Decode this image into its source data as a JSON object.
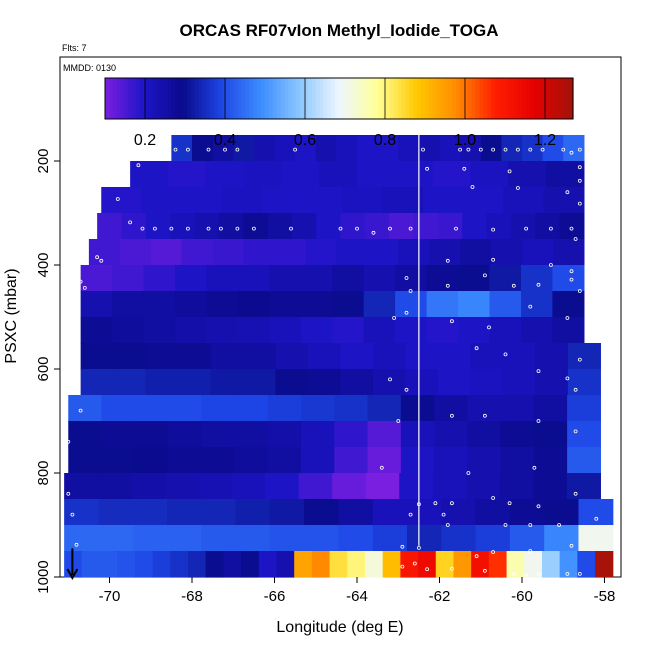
{
  "chart_data": {
    "type": "heatmap",
    "title": "ORCAS RF07vIon Methyl_Iodide_TOGA",
    "flights_label": "Flts: 7",
    "date_label": "MMDD: 0130",
    "xlabel": "Longitude (deg E)",
    "ylabel": "PSXC (mbar)",
    "xlim": [
      -71.2,
      -57.6
    ],
    "ylim": [
      1000,
      0
    ],
    "x_ticks": [
      -70,
      -68,
      -66,
      -64,
      -62,
      -60,
      -58
    ],
    "y_ticks": [
      200,
      400,
      600,
      800,
      1000
    ],
    "colorbar": {
      "range": [
        0.1,
        1.27
      ],
      "ticks": [
        0.2,
        0.4,
        0.6,
        0.8,
        1.0,
        1.2
      ],
      "tick_labels": [
        "0.2",
        "0.4",
        "0.6",
        "0.8",
        "1.0",
        "1.2"
      ],
      "colors": [
        "#7a1ee0",
        "#1e14c8",
        "#0a0a8c",
        "#1e46e6",
        "#3c8cff",
        "#8cc8ff",
        "#eef6ff",
        "#ffff96",
        "#ffc800",
        "#ff8c00",
        "#ff1e00",
        "#e60000",
        "#a0140a"
      ]
    },
    "vertical_line_x": -62.5,
    "arrow": {
      "x": -70.9,
      "y": 1000
    },
    "rows": [
      {
        "p": 175,
        "x0": -68.5,
        "x1": -58.5,
        "vals": [
          0.36,
          0.3,
          0.26,
          0.32,
          0.24,
          0.22,
          0.2,
          0.24,
          0.22,
          0.2,
          0.2,
          0.22,
          0.24,
          0.22,
          0.24,
          0.3,
          0.34,
          0.36,
          0.4,
          0.44
        ]
      },
      {
        "p": 225,
        "x0": -69.5,
        "x1": -58.5,
        "vals": [
          0.2,
          0.19,
          0.2,
          0.21,
          0.2,
          0.22,
          0.2,
          0.2,
          0.19,
          0.21,
          0.24,
          0.26
        ]
      },
      {
        "p": 275,
        "x0": -70.2,
        "x1": -58.5,
        "vals": [
          0.19,
          0.2,
          0.2,
          0.21,
          0.2,
          0.2,
          0.21,
          0.22,
          0.2,
          0.2,
          0.22,
          0.24
        ]
      },
      {
        "p": 325,
        "x0": -70.3,
        "x1": -58.5,
        "vals": [
          0.16,
          0.18,
          0.2,
          0.22,
          0.24,
          0.26,
          0.28,
          0.26,
          0.24,
          0.2,
          0.18,
          0.17,
          0.15,
          0.16,
          0.17,
          0.2,
          0.22,
          0.24,
          0.26,
          0.28
        ]
      },
      {
        "p": 375,
        "x0": -70.5,
        "x1": -58.5,
        "vals": [
          0.16,
          0.15,
          0.14,
          0.16,
          0.17,
          0.18,
          0.18,
          0.19,
          0.2,
          0.2,
          0.22,
          0.24,
          0.26,
          0.24,
          0.22,
          0.24
        ]
      },
      {
        "p": 425,
        "x0": -70.7,
        "x1": -58.5,
        "vals": [
          0.15,
          0.16,
          0.18,
          0.2,
          0.22,
          0.22,
          0.24,
          0.24,
          0.26,
          0.24,
          0.26,
          0.28,
          0.3,
          0.32,
          0.36,
          0.4
        ]
      },
      {
        "p": 475,
        "x0": -70.7,
        "x1": -58.5,
        "vals": [
          0.24,
          0.26,
          0.26,
          0.27,
          0.28,
          0.29,
          0.28,
          0.28,
          0.3,
          0.34,
          0.4,
          0.46,
          0.48,
          0.42,
          0.36,
          0.3
        ]
      },
      {
        "p": 525,
        "x0": -70.7,
        "x1": -58.5,
        "vals": [
          0.28,
          0.27,
          0.26,
          0.25,
          0.24,
          0.23,
          0.22,
          0.2,
          0.19,
          0.22,
          0.2,
          0.19,
          0.2,
          0.22,
          0.24,
          0.26
        ]
      },
      {
        "p": 575,
        "x0": -70.7,
        "x1": -58.1,
        "vals": [
          0.3,
          0.3,
          0.28,
          0.28,
          0.26,
          0.26,
          0.24,
          0.22,
          0.2,
          0.22,
          0.2,
          0.2,
          0.22,
          0.22,
          0.24,
          0.34
        ]
      },
      {
        "p": 625,
        "x0": -70.7,
        "x1": -58.1,
        "vals": [
          0.34,
          0.34,
          0.33,
          0.33,
          0.32,
          0.32,
          0.3,
          0.28,
          0.26,
          0.24,
          0.22,
          0.2,
          0.21,
          0.22,
          0.24,
          0.36
        ]
      },
      {
        "p": 675,
        "x0": -71.0,
        "x1": -58.1,
        "vals": [
          0.42,
          0.4,
          0.4,
          0.4,
          0.39,
          0.39,
          0.38,
          0.37,
          0.36,
          0.34,
          0.3,
          0.26,
          0.24,
          0.24,
          0.26,
          0.38
        ]
      },
      {
        "p": 725,
        "x0": -71.0,
        "x1": -58.1,
        "vals": [
          0.3,
          0.28,
          0.28,
          0.27,
          0.26,
          0.26,
          0.25,
          0.22,
          0.18,
          0.14,
          0.22,
          0.24,
          0.26,
          0.28,
          0.3,
          0.4
        ]
      },
      {
        "p": 775,
        "x0": -71.0,
        "x1": -58.1,
        "vals": [
          0.3,
          0.3,
          0.29,
          0.28,
          0.28,
          0.27,
          0.26,
          0.22,
          0.16,
          0.12,
          0.2,
          0.22,
          0.24,
          0.26,
          0.28,
          0.42
        ]
      },
      {
        "p": 825,
        "x0": -71.1,
        "x1": -58.1,
        "vals": [
          0.26,
          0.26,
          0.25,
          0.24,
          0.23,
          0.22,
          0.2,
          0.16,
          0.12,
          0.1,
          0.2,
          0.22,
          0.24,
          0.26,
          0.28,
          0.32
        ]
      },
      {
        "p": 875,
        "x0": -71.1,
        "x1": -57.8,
        "vals": [
          0.36,
          0.35,
          0.35,
          0.34,
          0.34,
          0.33,
          0.32,
          0.3,
          0.26,
          0.22,
          0.22,
          0.24,
          0.26,
          0.28,
          0.3,
          0.4
        ]
      },
      {
        "p": 925,
        "x0": -71.1,
        "x1": -57.8,
        "vals": [
          0.44,
          0.44,
          0.43,
          0.43,
          0.42,
          0.42,
          0.41,
          0.41,
          0.4,
          0.38,
          0.34,
          0.36,
          0.38,
          0.42,
          0.48,
          0.7
        ]
      },
      {
        "p": 975,
        "x0": -71.1,
        "x1": -57.8,
        "vals": [
          0.4,
          0.42,
          0.42,
          0.41,
          0.4,
          0.38,
          0.36,
          0.34,
          0.3,
          0.26,
          0.3,
          0.2,
          0.24,
          0.94,
          0.98,
          0.84,
          0.8,
          0.72,
          0.9,
          1.1,
          1.14,
          0.86,
          0.96,
          1.12,
          1.06,
          0.76,
          0.7,
          0.6,
          0.5,
          0.4,
          1.26
        ]
      }
    ],
    "points": [
      [
        -68.4,
        178
      ],
      [
        -68.1,
        178
      ],
      [
        -67.6,
        178
      ],
      [
        -67.2,
        178
      ],
      [
        -66.9,
        178
      ],
      [
        -65.5,
        178
      ],
      [
        -62.4,
        178
      ],
      [
        -61.5,
        178
      ],
      [
        -61.3,
        178
      ],
      [
        -61.0,
        178
      ],
      [
        -60.7,
        178
      ],
      [
        -60.4,
        178
      ],
      [
        -60.1,
        178
      ],
      [
        -59.8,
        178
      ],
      [
        -59.5,
        178
      ],
      [
        -59.0,
        178
      ],
      [
        -58.8,
        184
      ],
      [
        -58.6,
        178
      ],
      [
        -69.3,
        208
      ],
      [
        -62.3,
        215
      ],
      [
        -61.4,
        215
      ],
      [
        -60.3,
        220
      ],
      [
        -58.6,
        212
      ],
      [
        -58.6,
        238
      ],
      [
        -61.2,
        250
      ],
      [
        -60.1,
        252
      ],
      [
        -58.9,
        260
      ],
      [
        -58.6,
        282
      ],
      [
        -69.8,
        273
      ],
      [
        -69.5,
        318
      ],
      [
        -69.2,
        330
      ],
      [
        -68.9,
        330
      ],
      [
        -68.5,
        330
      ],
      [
        -68.1,
        330
      ],
      [
        -67.6,
        330
      ],
      [
        -67.3,
        330
      ],
      [
        -66.9,
        330
      ],
      [
        -66.5,
        330
      ],
      [
        -65.6,
        330
      ],
      [
        -64.4,
        330
      ],
      [
        -64.0,
        330
      ],
      [
        -63.2,
        330
      ],
      [
        -62.7,
        330
      ],
      [
        -61.6,
        330
      ],
      [
        -60.7,
        332
      ],
      [
        -59.9,
        330
      ],
      [
        -59.3,
        330
      ],
      [
        -58.8,
        330
      ],
      [
        -58.7,
        350
      ],
      [
        -63.6,
        338
      ],
      [
        -70.3,
        385
      ],
      [
        -70.2,
        392
      ],
      [
        -61.8,
        392
      ],
      [
        -60.7,
        390
      ],
      [
        -59.3,
        400
      ],
      [
        -58.8,
        412
      ],
      [
        -70.7,
        432
      ],
      [
        -70.6,
        444
      ],
      [
        -62.8,
        425
      ],
      [
        -62.7,
        450
      ],
      [
        -61.8,
        440
      ],
      [
        -60.9,
        420
      ],
      [
        -60.2,
        440
      ],
      [
        -59.6,
        438
      ],
      [
        -58.8,
        428
      ],
      [
        -58.6,
        450
      ],
      [
        -70.8,
        510
      ],
      [
        -63.1,
        502
      ],
      [
        -62.8,
        492
      ],
      [
        -61.7,
        508
      ],
      [
        -60.8,
        520
      ],
      [
        -59.8,
        480
      ],
      [
        -58.9,
        502
      ],
      [
        -70.8,
        560
      ],
      [
        -61.1,
        560
      ],
      [
        -60.4,
        572
      ],
      [
        -58.6,
        582
      ],
      [
        -70.8,
        615
      ],
      [
        -63.2,
        620
      ],
      [
        -62.8,
        640
      ],
      [
        -59.6,
        604
      ],
      [
        -58.9,
        618
      ],
      [
        -58.7,
        640
      ],
      [
        -70.7,
        680
      ],
      [
        -63.0,
        700
      ],
      [
        -61.7,
        690
      ],
      [
        -60.9,
        690
      ],
      [
        -59.6,
        700
      ],
      [
        -58.7,
        720
      ],
      [
        -71.0,
        740
      ],
      [
        -63.4,
        790
      ],
      [
        -61.3,
        800
      ],
      [
        -59.7,
        790
      ],
      [
        -71.0,
        840
      ],
      [
        -62.5,
        860
      ],
      [
        -62.1,
        858
      ],
      [
        -61.7,
        858
      ],
      [
        -60.7,
        848
      ],
      [
        -60.3,
        858
      ],
      [
        -59.6,
        864
      ],
      [
        -58.7,
        840
      ],
      [
        -70.9,
        880
      ],
      [
        -62.7,
        880
      ],
      [
        -61.9,
        880
      ],
      [
        -61.8,
        900
      ],
      [
        -60.4,
        900
      ],
      [
        -59.8,
        900
      ],
      [
        -59.1,
        900
      ],
      [
        -58.2,
        888
      ],
      [
        -70.8,
        938
      ],
      [
        -62.9,
        942
      ],
      [
        -62.5,
        944
      ],
      [
        -61.1,
        960
      ],
      [
        -60.7,
        952
      ],
      [
        -59.8,
        950
      ],
      [
        -58.8,
        940
      ],
      [
        -62.6,
        974
      ],
      [
        -62.3,
        985
      ],
      [
        -61.7,
        984
      ],
      [
        -60.9,
        988
      ],
      [
        -60.2,
        994
      ],
      [
        -59.9,
        996
      ],
      [
        -59.6,
        994
      ],
      [
        -58.9,
        994
      ],
      [
        -58.6,
        994
      ],
      [
        -62.9,
        980
      ]
    ]
  }
}
